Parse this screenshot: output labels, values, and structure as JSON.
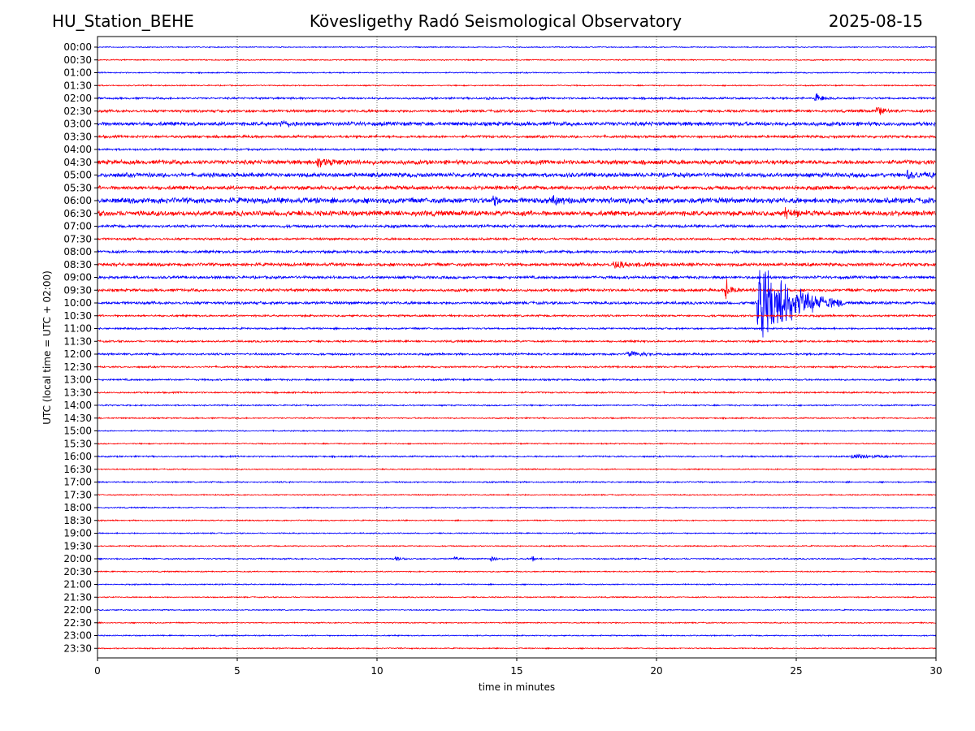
{
  "header": {
    "station": "HU_Station_BEHE",
    "observatory": "Kövesligethy Radó Seismological Observatory",
    "date": "2025-08-15"
  },
  "chart_data": {
    "type": "line",
    "title": "Kövesligethy Radó Seismological Observatory",
    "xlabel": "time in minutes",
    "ylabel": "UTC (local time = UTC + 02:00)",
    "xlim": [
      0,
      30
    ],
    "x_ticks": [
      0,
      5,
      10,
      15,
      20,
      25,
      30
    ],
    "grid": "vertical dotted lines at x ticks",
    "colors": [
      "#0000ff",
      "#ff0000"
    ],
    "rows": [
      "00:00",
      "00:30",
      "01:00",
      "01:30",
      "02:00",
      "02:30",
      "03:00",
      "03:30",
      "04:00",
      "04:30",
      "05:00",
      "05:30",
      "06:00",
      "06:30",
      "07:00",
      "07:30",
      "08:00",
      "08:30",
      "09:00",
      "09:30",
      "10:00",
      "10:30",
      "11:00",
      "11:30",
      "12:00",
      "12:30",
      "13:00",
      "13:30",
      "14:00",
      "14:30",
      "15:00",
      "15:30",
      "16:00",
      "16:30",
      "17:00",
      "17:30",
      "18:00",
      "18:30",
      "19:00",
      "19:30",
      "20:00",
      "20:30",
      "21:00",
      "21:30",
      "22:00",
      "22:30",
      "23:00",
      "23:30"
    ],
    "noise_levels": [
      0.5,
      0.6,
      0.6,
      0.6,
      1.0,
      1.3,
      2.0,
      1.3,
      1.0,
      2.2,
      2.2,
      2.0,
      2.8,
      2.6,
      1.4,
      1.1,
      1.4,
      1.6,
      1.4,
      1.4,
      1.4,
      1.0,
      0.9,
      1.0,
      1.0,
      0.9,
      0.9,
      0.8,
      0.7,
      0.7,
      0.6,
      0.6,
      0.8,
      0.6,
      0.7,
      0.6,
      0.6,
      0.6,
      0.6,
      0.6,
      0.7,
      0.6,
      0.6,
      0.6,
      0.6,
      0.6,
      0.6,
      0.6
    ],
    "events": [
      {
        "row": "02:00",
        "minute": 13.9,
        "amplitude": 3,
        "duration": 0.3
      },
      {
        "row": "02:00",
        "minute": 25.7,
        "amplitude": 6,
        "duration": 0.8
      },
      {
        "row": "02:30",
        "minute": 27.9,
        "amplitude": 7,
        "duration": 0.8
      },
      {
        "row": "03:00",
        "minute": 6.6,
        "amplitude": 4,
        "duration": 0.8
      },
      {
        "row": "04:30",
        "minute": 7.9,
        "amplitude": 6,
        "duration": 1.5
      },
      {
        "row": "05:00",
        "minute": 29.0,
        "amplitude": 5,
        "duration": 1.5
      },
      {
        "row": "06:00",
        "minute": 14.2,
        "amplitude": 7,
        "duration": 0.3
      },
      {
        "row": "06:00",
        "minute": 16.3,
        "amplitude": 5,
        "duration": 0.8
      },
      {
        "row": "06:30",
        "minute": 24.6,
        "amplitude": 6,
        "duration": 1.0
      },
      {
        "row": "08:30",
        "minute": 18.5,
        "amplitude": 5,
        "duration": 2.0
      },
      {
        "row": "09:30",
        "minute": 22.5,
        "amplitude": 14,
        "duration": 0.6
      },
      {
        "row": "10:00",
        "minute": 23.65,
        "amplitude": 75,
        "duration": 3.0
      },
      {
        "row": "12:00",
        "minute": 19.0,
        "amplitude": 4,
        "duration": 1.5
      },
      {
        "row": "16:00",
        "minute": 27.0,
        "amplitude": 4,
        "duration": 2.0
      },
      {
        "row": "20:00",
        "minute": 10.7,
        "amplitude": 3,
        "duration": 0.5
      },
      {
        "row": "20:00",
        "minute": 12.8,
        "amplitude": 4,
        "duration": 0.3
      },
      {
        "row": "20:00",
        "minute": 14.1,
        "amplitude": 4,
        "duration": 0.5
      },
      {
        "row": "20:00",
        "minute": 15.6,
        "amplitude": 5,
        "duration": 0.2
      }
    ]
  }
}
